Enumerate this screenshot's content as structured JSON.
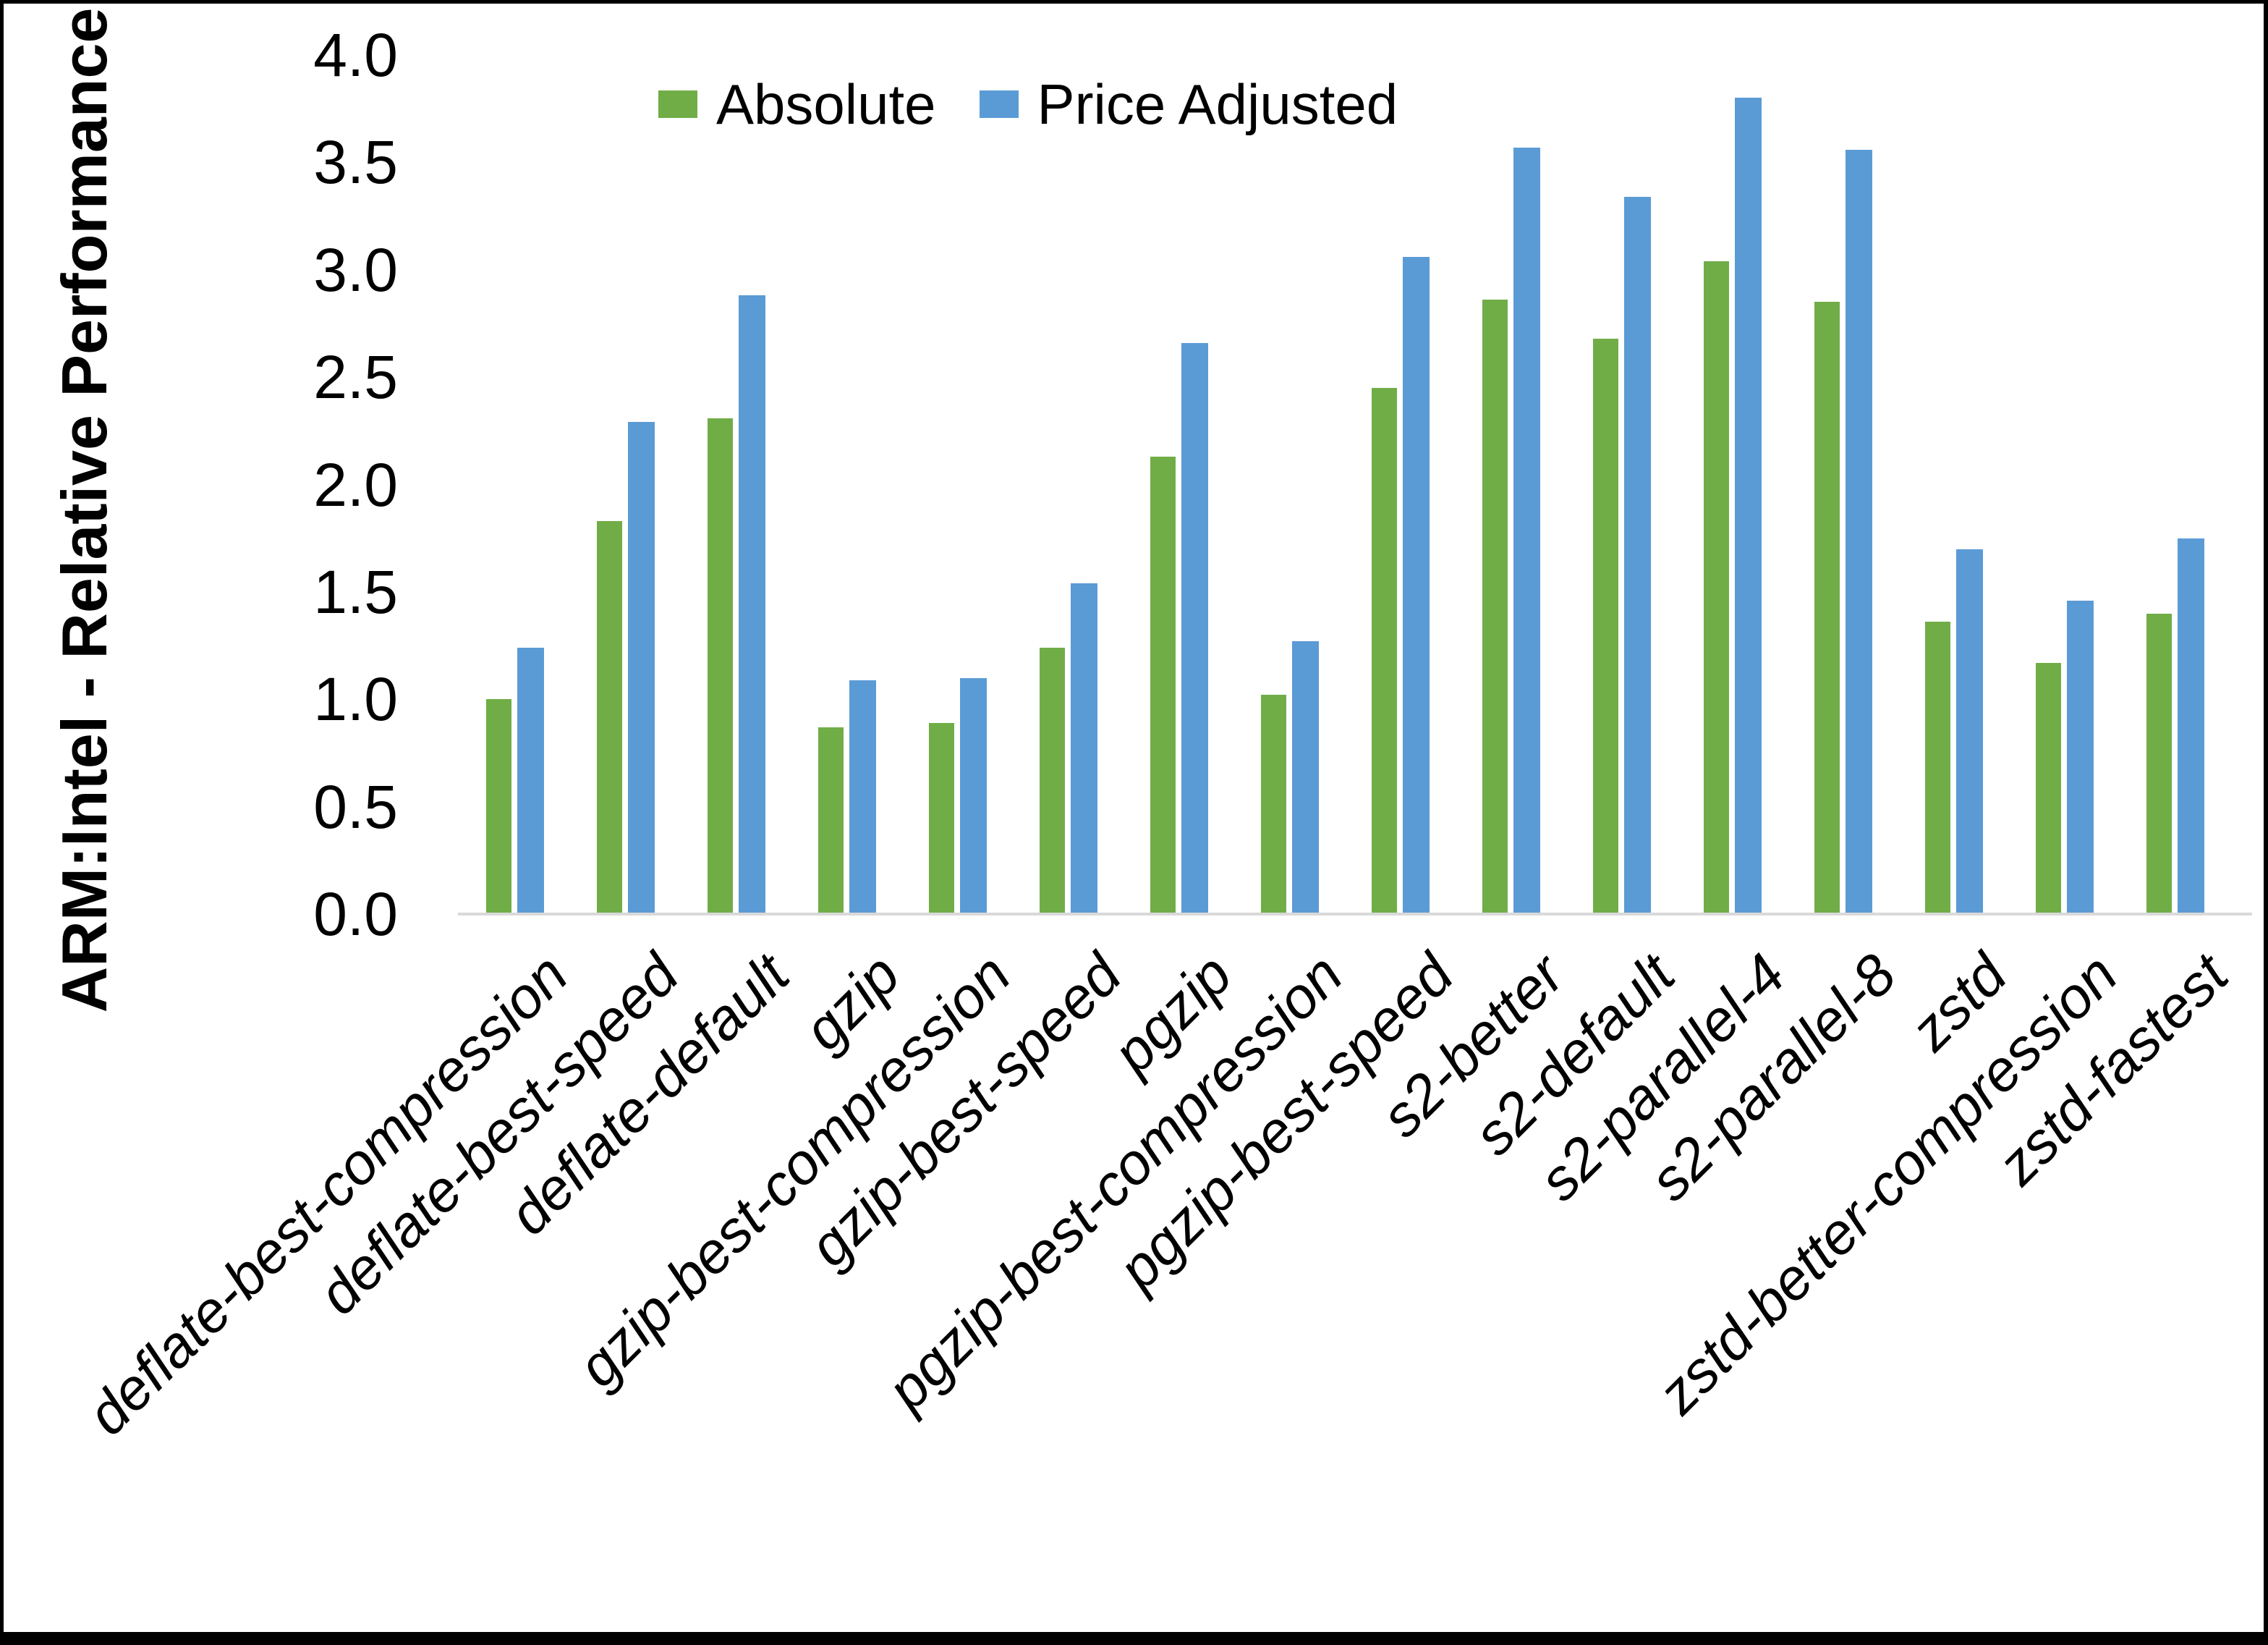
{
  "y_axis": {
    "title": "ARM:Intel - Relative Performance",
    "tick_labels": [
      "4.0",
      "3.5",
      "3.0",
      "2.5",
      "2.0",
      "1.5",
      "1.0",
      "0.5",
      "0.0"
    ]
  },
  "legend": [
    {
      "label": "Absolute",
      "color": "#70AD47"
    },
    {
      "label": "Price Adjusted",
      "color": "#5B9BD5"
    }
  ],
  "chart_data": {
    "type": "bar",
    "title": "",
    "xlabel": "",
    "ylabel": "ARM:Intel - Relative Performance",
    "ylim": [
      0.0,
      4.0
    ],
    "ytick_step": 0.5,
    "grid": false,
    "legend_position": "top-center",
    "categories": [
      "deflate-best-compression",
      "deflate-best-speed",
      "deflate-default",
      "gzip",
      "gzip-best-compression",
      "gzip-best-speed",
      "pgzip",
      "pgzip-best-compression",
      "pgzip-best-speed",
      "s2-better",
      "s2-default",
      "s2-parallel-4",
      "s2-parallel-8",
      "zstd",
      "zstd-better-compression",
      "zstd-fastest"
    ],
    "series": [
      {
        "name": "Absolute",
        "color": "#70AD47",
        "values": [
          1.0,
          1.83,
          2.31,
          0.87,
          0.89,
          1.24,
          2.13,
          1.02,
          2.45,
          2.86,
          2.68,
          3.04,
          2.85,
          1.36,
          1.17,
          1.4
        ]
      },
      {
        "name": "Price Adjusted",
        "color": "#5B9BD5",
        "values": [
          1.24,
          2.29,
          2.88,
          1.09,
          1.1,
          1.54,
          2.66,
          1.27,
          3.06,
          3.57,
          3.34,
          3.8,
          3.56,
          1.7,
          1.46,
          1.75
        ]
      }
    ]
  },
  "colors": {
    "axis_line": "#D9D9D9",
    "text": "#000000",
    "background": "#FFFFFF",
    "border": "#000000"
  }
}
